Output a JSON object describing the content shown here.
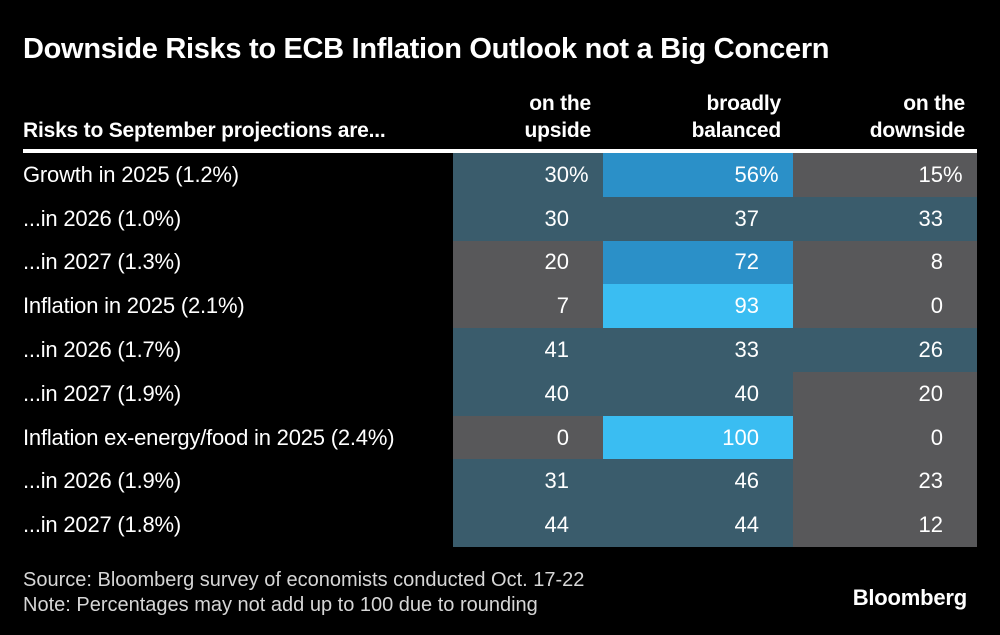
{
  "chart_data": {
    "type": "table",
    "title": "Downside Risks to ECB Inflation Outlook not a Big Concern",
    "row_header": "Risks to September projections are...",
    "columns": [
      [
        "on the",
        "upside"
      ],
      [
        "broadly",
        "balanced"
      ],
      [
        "on the",
        "downside"
      ]
    ],
    "rows": [
      {
        "label": "Growth in 2025 (1.2%)",
        "values": [
          30,
          56,
          15
        ],
        "suffix": "%"
      },
      {
        "label": "...in 2026 (1.0%)",
        "values": [
          30,
          37,
          33
        ],
        "suffix": ""
      },
      {
        "label": "...in 2027 (1.3%)",
        "values": [
          20,
          72,
          8
        ],
        "suffix": ""
      },
      {
        "label": "Inflation in 2025 (2.1%)",
        "values": [
          7,
          93,
          0
        ],
        "suffix": ""
      },
      {
        "label": "...in 2026 (1.7%)",
        "values": [
          41,
          33,
          26
        ],
        "suffix": ""
      },
      {
        "label": "...in 2027 (1.9%)",
        "values": [
          40,
          40,
          20
        ],
        "suffix": ""
      },
      {
        "label": "Inflation ex-energy/food in 2025 (2.4%)",
        "values": [
          0,
          100,
          0
        ],
        "suffix": ""
      },
      {
        "label": "...in 2026 (1.9%)",
        "values": [
          31,
          46,
          23
        ],
        "suffix": ""
      },
      {
        "label": "...in 2027 (1.8%)",
        "values": [
          44,
          44,
          12
        ],
        "suffix": ""
      }
    ],
    "color_scale": [
      {
        "max": 24,
        "color": "#58585a"
      },
      {
        "max": 50,
        "color": "#3a5c6c"
      },
      {
        "max": 75,
        "color": "#2b90c8"
      },
      {
        "max": 100,
        "color": "#3abdf2"
      }
    ],
    "background": "#000000",
    "text_color": "#ffffff"
  },
  "footer": {
    "source": "Source: Bloomberg survey of economists conducted Oct. 17-22",
    "note": "Note: Percentages may not add up to 100 due to rounding",
    "logo": "Bloomberg"
  }
}
